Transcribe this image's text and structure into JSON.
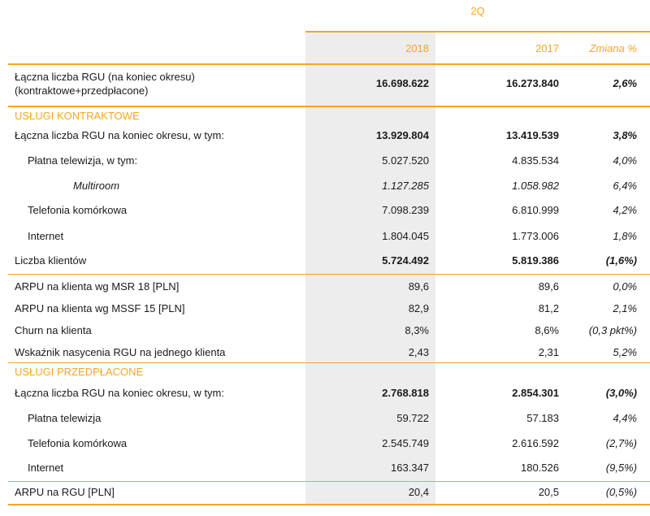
{
  "header": {
    "period": "2Q",
    "col_2018": "2018",
    "col_2017": "2017",
    "col_change": "Zmiana %"
  },
  "colors": {
    "accent": "#f5a623",
    "shade": "#ededed"
  },
  "total": {
    "label_line1": "Łączna liczba RGU (na koniec okresu)",
    "label_line2": "(kontraktowe+przedpłacone)",
    "v2018": "16.698.622",
    "v2017": "16.273.840",
    "change": "2,6%"
  },
  "contract": {
    "section": "USŁUGI KONTRAKTOWE",
    "rows": [
      {
        "label": "Łączna liczba RGU na koniec okresu, w tym:",
        "v2018": "13.929.804",
        "v2017": "13.419.539",
        "change": "3,8%"
      },
      {
        "label": "Płatna telewizja, w tym:",
        "v2018": "5.027.520",
        "v2017": "4.835.534",
        "change": "4,0%"
      },
      {
        "label": "Multiroom",
        "v2018": "1.127.285",
        "v2017": "1.058.982",
        "change": "6,4%"
      },
      {
        "label": "Telefonia komórkowa",
        "v2018": "7.098.239",
        "v2017": "6.810.999",
        "change": "4,2%"
      },
      {
        "label": "Internet",
        "v2018": "1.804.045",
        "v2017": "1.773.006",
        "change": "1,8%"
      },
      {
        "label": "Liczba klientów",
        "v2018": "5.724.492",
        "v2017": "5.819.386",
        "change": "(1,6%)"
      },
      {
        "label": "ARPU na klienta wg MSR 18 [PLN]",
        "v2018": "89,6",
        "v2017": "89,6",
        "change": "0,0%"
      },
      {
        "label": "ARPU na klienta wg MSSF 15 [PLN]",
        "v2018": "82,9",
        "v2017": "81,2",
        "change": "2,1%"
      },
      {
        "label": "Churn na klienta",
        "v2018": "8,3%",
        "v2017": "8,6%",
        "change": "(0,3 pkt%)"
      },
      {
        "label": "Wskaźnik nasycenia RGU na jednego klienta",
        "v2018": "2,43",
        "v2017": "2,31",
        "change": "5,2%"
      }
    ]
  },
  "prepaid": {
    "section": "USŁUGI PRZEDPŁACONE",
    "rows": [
      {
        "label": "Łączna liczba RGU na koniec okresu, w tym:",
        "v2018": "2.768.818",
        "v2017": "2.854.301",
        "change": "(3,0%)"
      },
      {
        "label": "Płatna telewizja",
        "v2018": "59.722",
        "v2017": "57.183",
        "change": "4,4%"
      },
      {
        "label": "Telefonia komórkowa",
        "v2018": "2.545.749",
        "v2017": "2.616.592",
        "change": "(2,7%)"
      },
      {
        "label": "Internet",
        "v2018": "163.347",
        "v2017": "180.526",
        "change": "(9,5%)"
      },
      {
        "label": "ARPU na RGU [PLN]",
        "v2018": "20,4",
        "v2017": "20,5",
        "change": "(0,5%)"
      }
    ]
  }
}
